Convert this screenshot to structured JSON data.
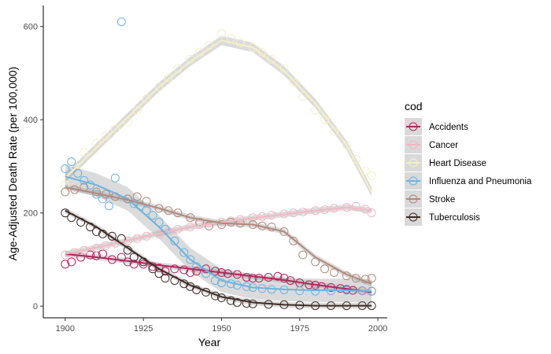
{
  "chart_data": {
    "type": "scatter",
    "xlabel": "Year",
    "ylabel": "Age-Adjusted Death Rate (per 100,000)",
    "xlim": [
      1893,
      2003
    ],
    "ylim": [
      -25,
      645
    ],
    "x_ticks": [
      1900,
      1925,
      1950,
      1975,
      2000
    ],
    "y_ticks": [
      0,
      200,
      400,
      600
    ],
    "grid": false,
    "legend": {
      "title": "cod",
      "position": "right"
    },
    "smoother": "loess with shaded confidence band",
    "series": [
      {
        "name": "Accidents",
        "color": "#b3255d",
        "points": [
          [
            1900,
            90
          ],
          [
            1902,
            95
          ],
          [
            1905,
            105
          ],
          [
            1908,
            110
          ],
          [
            1910,
            108
          ],
          [
            1912,
            112
          ],
          [
            1915,
            100
          ],
          [
            1918,
            105
          ],
          [
            1920,
            95
          ],
          [
            1922,
            90
          ],
          [
            1925,
            90
          ],
          [
            1928,
            85
          ],
          [
            1930,
            82
          ],
          [
            1932,
            75
          ],
          [
            1935,
            80
          ],
          [
            1938,
            78
          ],
          [
            1940,
            72
          ],
          [
            1942,
            75
          ],
          [
            1945,
            80
          ],
          [
            1948,
            75
          ],
          [
            1950,
            72
          ],
          [
            1952,
            70
          ],
          [
            1955,
            68
          ],
          [
            1958,
            62
          ],
          [
            1960,
            60
          ],
          [
            1962,
            60
          ],
          [
            1965,
            62
          ],
          [
            1968,
            64
          ],
          [
            1970,
            60
          ],
          [
            1972,
            55
          ],
          [
            1975,
            50
          ],
          [
            1978,
            46
          ],
          [
            1980,
            45
          ],
          [
            1982,
            42
          ],
          [
            1985,
            40
          ],
          [
            1988,
            38
          ],
          [
            1990,
            36
          ],
          [
            1992,
            34
          ],
          [
            1995,
            33
          ],
          [
            1998,
            32
          ]
        ],
        "smooth": [
          [
            1900,
            112
          ],
          [
            1910,
            105
          ],
          [
            1920,
            97
          ],
          [
            1930,
            88
          ],
          [
            1940,
            80
          ],
          [
            1950,
            72
          ],
          [
            1960,
            64
          ],
          [
            1970,
            56
          ],
          [
            1980,
            46
          ],
          [
            1990,
            37
          ],
          [
            1998,
            30
          ]
        ]
      },
      {
        "name": "Cancer",
        "color": "#f2b8c3",
        "points": [
          [
            1900,
            110
          ],
          [
            1903,
            115
          ],
          [
            1906,
            120
          ],
          [
            1910,
            125
          ],
          [
            1913,
            130
          ],
          [
            1916,
            135
          ],
          [
            1920,
            140
          ],
          [
            1923,
            145
          ],
          [
            1926,
            150
          ],
          [
            1930,
            155
          ],
          [
            1933,
            160
          ],
          [
            1936,
            165
          ],
          [
            1940,
            170
          ],
          [
            1943,
            175
          ],
          [
            1946,
            178
          ],
          [
            1950,
            180
          ],
          [
            1953,
            183
          ],
          [
            1956,
            186
          ],
          [
            1960,
            190
          ],
          [
            1963,
            192
          ],
          [
            1966,
            195
          ],
          [
            1970,
            198
          ],
          [
            1973,
            200
          ],
          [
            1976,
            202
          ],
          [
            1980,
            205
          ],
          [
            1983,
            207
          ],
          [
            1986,
            210
          ],
          [
            1990,
            212
          ],
          [
            1993,
            214
          ],
          [
            1996,
            208
          ],
          [
            1998,
            200
          ]
        ],
        "smooth": [
          [
            1900,
            112
          ],
          [
            1910,
            126
          ],
          [
            1920,
            141
          ],
          [
            1930,
            156
          ],
          [
            1940,
            170
          ],
          [
            1950,
            180
          ],
          [
            1960,
            189
          ],
          [
            1970,
            197
          ],
          [
            1980,
            205
          ],
          [
            1990,
            212
          ],
          [
            1998,
            205
          ]
        ]
      },
      {
        "name": "Heart Disease",
        "color": "#f5efc8",
        "points": [
          [
            1900,
            260
          ],
          [
            1903,
            300
          ],
          [
            1906,
            330
          ],
          [
            1910,
            350
          ],
          [
            1913,
            365
          ],
          [
            1916,
            380
          ],
          [
            1920,
            395
          ],
          [
            1923,
            420
          ],
          [
            1926,
            445
          ],
          [
            1930,
            470
          ],
          [
            1933,
            490
          ],
          [
            1936,
            510
          ],
          [
            1940,
            530
          ],
          [
            1943,
            545
          ],
          [
            1946,
            560
          ],
          [
            1950,
            585
          ],
          [
            1953,
            575
          ],
          [
            1956,
            565
          ],
          [
            1960,
            555
          ],
          [
            1963,
            545
          ],
          [
            1966,
            530
          ],
          [
            1970,
            510
          ],
          [
            1973,
            480
          ],
          [
            1976,
            450
          ],
          [
            1980,
            420
          ],
          [
            1983,
            400
          ],
          [
            1986,
            375
          ],
          [
            1990,
            345
          ],
          [
            1993,
            315
          ],
          [
            1996,
            290
          ],
          [
            1998,
            280
          ]
        ],
        "smooth": [
          [
            1900,
            275
          ],
          [
            1910,
            340
          ],
          [
            1920,
            405
          ],
          [
            1930,
            470
          ],
          [
            1940,
            525
          ],
          [
            1950,
            570
          ],
          [
            1960,
            555
          ],
          [
            1970,
            505
          ],
          [
            1980,
            435
          ],
          [
            1990,
            345
          ],
          [
            1998,
            245
          ]
        ],
        "band": 10
      },
      {
        "name": "Influenza and Pneumonia",
        "color": "#6db3e0",
        "points": [
          [
            1900,
            295
          ],
          [
            1902,
            310
          ],
          [
            1904,
            285
          ],
          [
            1906,
            270
          ],
          [
            1908,
            260
          ],
          [
            1910,
            240
          ],
          [
            1912,
            230
          ],
          [
            1914,
            215
          ],
          [
            1916,
            275
          ],
          [
            1918,
            610
          ],
          [
            1920,
            230
          ],
          [
            1922,
            220
          ],
          [
            1924,
            215
          ],
          [
            1926,
            205
          ],
          [
            1928,
            195
          ],
          [
            1930,
            180
          ],
          [
            1932,
            165
          ],
          [
            1935,
            140
          ],
          [
            1938,
            115
          ],
          [
            1940,
            100
          ],
          [
            1942,
            85
          ],
          [
            1945,
            70
          ],
          [
            1948,
            55
          ],
          [
            1950,
            50
          ],
          [
            1953,
            48
          ],
          [
            1955,
            45
          ],
          [
            1958,
            42
          ],
          [
            1960,
            40
          ],
          [
            1963,
            38
          ],
          [
            1966,
            36
          ],
          [
            1970,
            35
          ],
          [
            1975,
            33
          ],
          [
            1980,
            32
          ],
          [
            1985,
            33
          ],
          [
            1990,
            34
          ],
          [
            1995,
            33
          ],
          [
            1998,
            32
          ]
        ],
        "smooth": [
          [
            1900,
            278
          ],
          [
            1910,
            260
          ],
          [
            1920,
            230
          ],
          [
            1930,
            170
          ],
          [
            1940,
            100
          ],
          [
            1950,
            55
          ],
          [
            1960,
            40
          ],
          [
            1970,
            36
          ],
          [
            1980,
            34
          ],
          [
            1990,
            34
          ],
          [
            1998,
            32
          ]
        ],
        "band": 25
      },
      {
        "name": "Stroke",
        "color": "#b08a7e",
        "points": [
          [
            1900,
            245
          ],
          [
            1903,
            250
          ],
          [
            1906,
            255
          ],
          [
            1910,
            245
          ],
          [
            1913,
            240
          ],
          [
            1916,
            235
          ],
          [
            1920,
            230
          ],
          [
            1923,
            235
          ],
          [
            1926,
            225
          ],
          [
            1930,
            210
          ],
          [
            1933,
            205
          ],
          [
            1936,
            200
          ],
          [
            1940,
            190
          ],
          [
            1943,
            180
          ],
          [
            1946,
            172
          ],
          [
            1950,
            175
          ],
          [
            1953,
            180
          ],
          [
            1956,
            178
          ],
          [
            1960,
            175
          ],
          [
            1963,
            172
          ],
          [
            1966,
            170
          ],
          [
            1970,
            160
          ],
          [
            1973,
            140
          ],
          [
            1976,
            110
          ],
          [
            1980,
            95
          ],
          [
            1983,
            80
          ],
          [
            1986,
            72
          ],
          [
            1990,
            65
          ],
          [
            1993,
            60
          ],
          [
            1996,
            58
          ],
          [
            1998,
            60
          ]
        ],
        "smooth": [
          [
            1900,
            255
          ],
          [
            1910,
            242
          ],
          [
            1920,
            228
          ],
          [
            1930,
            210
          ],
          [
            1940,
            190
          ],
          [
            1950,
            178
          ],
          [
            1960,
            175
          ],
          [
            1970,
            160
          ],
          [
            1980,
            105
          ],
          [
            1990,
            68
          ],
          [
            1998,
            48
          ]
        ]
      },
      {
        "name": "Tuberculosis",
        "color": "#3e2c27",
        "points": [
          [
            1900,
            200
          ],
          [
            1902,
            190
          ],
          [
            1905,
            180
          ],
          [
            1908,
            170
          ],
          [
            1910,
            160
          ],
          [
            1912,
            155
          ],
          [
            1915,
            150
          ],
          [
            1918,
            145
          ],
          [
            1920,
            120
          ],
          [
            1922,
            105
          ],
          [
            1925,
            95
          ],
          [
            1928,
            80
          ],
          [
            1930,
            70
          ],
          [
            1932,
            60
          ],
          [
            1935,
            55
          ],
          [
            1938,
            48
          ],
          [
            1940,
            42
          ],
          [
            1942,
            35
          ],
          [
            1945,
            30
          ],
          [
            1948,
            22
          ],
          [
            1950,
            18
          ],
          [
            1953,
            12
          ],
          [
            1955,
            8
          ],
          [
            1958,
            6
          ],
          [
            1960,
            5
          ],
          [
            1965,
            4
          ],
          [
            1970,
            3
          ],
          [
            1975,
            2
          ],
          [
            1980,
            1
          ],
          [
            1985,
            1
          ],
          [
            1990,
            1
          ],
          [
            1995,
            1
          ],
          [
            1998,
            1
          ]
        ],
        "smooth": [
          [
            1900,
            205
          ],
          [
            1910,
            170
          ],
          [
            1920,
            125
          ],
          [
            1930,
            80
          ],
          [
            1940,
            45
          ],
          [
            1950,
            20
          ],
          [
            1960,
            8
          ],
          [
            1970,
            3
          ],
          [
            1980,
            1
          ],
          [
            1990,
            1
          ],
          [
            1998,
            1
          ]
        ]
      }
    ]
  }
}
